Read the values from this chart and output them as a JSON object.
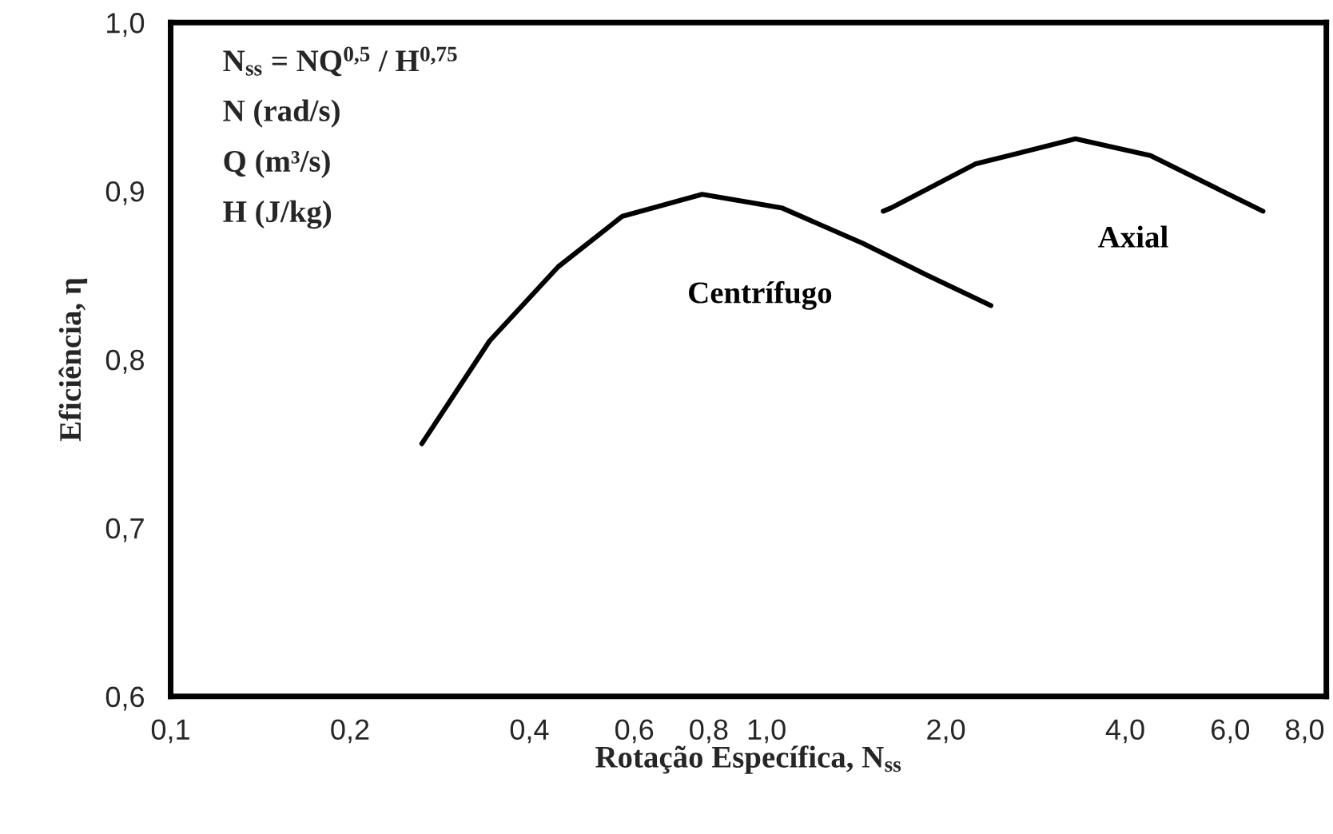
{
  "chart_data": {
    "type": "line",
    "xlabel": "Rotação Específica, N$_{ss}$",
    "ylabel": "Eficiência, η",
    "annotations": [
      "N$_{ss}$ = NQ$^{0,5}$ / H$^{0,75}$",
      "N (rad/s)",
      "Q (m³/s)",
      "H (J/kg)"
    ],
    "log": "x",
    "xlim": [
      0.1,
      8.7
    ],
    "ylim": [
      0.6,
      1.0
    ],
    "xticks": [
      {
        "value": 0.1,
        "label": "0,1"
      },
      {
        "value": 0.2,
        "label": "0,2"
      },
      {
        "value": 0.4,
        "label": "0,4"
      },
      {
        "value": 0.6,
        "label": "0,6"
      },
      {
        "value": 0.8,
        "label": "0,8"
      },
      {
        "value": 1.0,
        "label": "1,0"
      },
      {
        "value": 2.0,
        "label": "2,0"
      },
      {
        "value": 4.0,
        "label": "4,0"
      },
      {
        "value": 6.0,
        "label": "6,0"
      },
      {
        "value": 8.0,
        "label": "8,0"
      }
    ],
    "yticks": [
      {
        "value": 0.6,
        "label": "0,6"
      },
      {
        "value": 0.7,
        "label": "0,7"
      },
      {
        "value": 0.8,
        "label": "0,8"
      },
      {
        "value": 0.9,
        "label": "0,9"
      },
      {
        "value": 1.0,
        "label": "1,0"
      }
    ],
    "grid": false,
    "legend": false,
    "marker": "none",
    "line_style": "solid",
    "series": [
      {
        "name": "Centrífugo",
        "color": "#000000",
        "x": [
          0.264,
          0.343,
          0.447,
          0.573,
          0.78,
          1.06,
          1.45,
          1.86,
          2.38
        ],
        "values": [
          0.75,
          0.811,
          0.855,
          0.885,
          0.898,
          0.89,
          0.869,
          0.85,
          0.832
        ]
      },
      {
        "name": "Axial",
        "color": "#000000",
        "x": [
          1.57,
          1.62,
          2.24,
          3.3,
          4.41,
          5.66,
          6.81
        ],
        "values": [
          0.888,
          0.89,
          0.916,
          0.931,
          0.921,
          0.902,
          0.888
        ]
      }
    ]
  }
}
